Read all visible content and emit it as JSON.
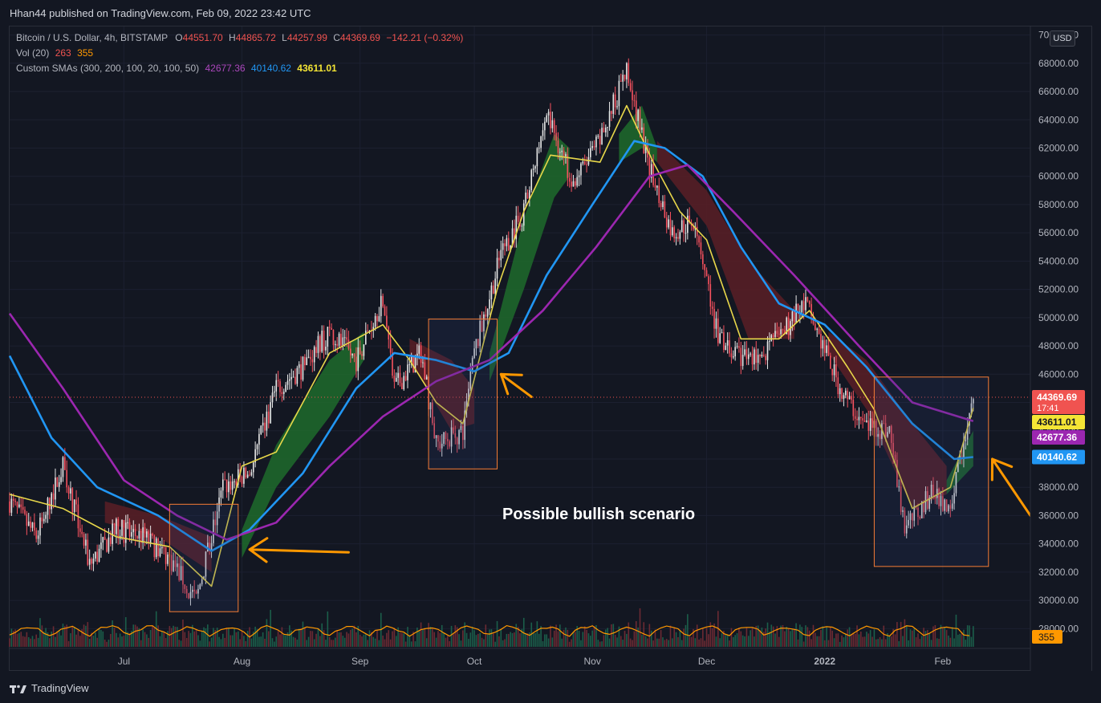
{
  "header": {
    "publish_line": "Hhan44 published on TradingView.com, Feb 09, 2022 23:42 UTC"
  },
  "legend": {
    "symbol": "Bitcoin / U.S. Dollar, 4h, BITSTAMP",
    "open_label": "O",
    "open": "44551.70",
    "high_label": "H",
    "high": "44865.72",
    "low_label": "L",
    "low": "44257.99",
    "close_label": "C",
    "close": "44369.69",
    "change": "−142.21 (−0.32%)",
    "vol_label": "Vol (20)",
    "vol_value": "263",
    "vol_ma": "355",
    "sma_label": "Custom SMAs (300, 200, 100, 20, 100, 50)",
    "sma_300": "42677.36",
    "sma_200": "40140.62",
    "sma_100": "43611.01"
  },
  "currency_button": "USD",
  "annotation_text": "Possible bullish scenario",
  "footer": {
    "brand": "TradingView"
  },
  "chart_data": {
    "type": "line",
    "x_ticks": [
      "Jul",
      "Aug",
      "Sep",
      "Oct",
      "Nov",
      "Dec",
      "2022",
      "Feb"
    ],
    "y_ticks": [
      "70000.00",
      "68000.00",
      "66000.00",
      "64000.00",
      "62000.00",
      "60000.00",
      "58000.00",
      "56000.00",
      "54000.00",
      "52000.00",
      "50000.00",
      "48000.00",
      "46000.00",
      "44000.00",
      "42000.00",
      "40000.00",
      "38000.00",
      "36000.00",
      "34000.00",
      "32000.00",
      "30000.00",
      "28000.00"
    ],
    "ylim": [
      26600,
      70600
    ],
    "x_range": [
      "2021-06-01",
      "2022-02-24"
    ],
    "price_labels": [
      {
        "text": "44369.69",
        "sub": "17:41",
        "value": 44369.69,
        "color": "#f05350"
      },
      {
        "text": "43611.01",
        "value": 43611.01,
        "color": "#f4e535"
      },
      {
        "text": "42677.36",
        "value": 42677.36,
        "color": "#9c27b0"
      },
      {
        "text": "40140.62",
        "value": 40140.62,
        "color": "#2196f3"
      }
    ],
    "volume_label": {
      "text": "355",
      "color": "#ff9800"
    },
    "series": [
      {
        "label": "price",
        "color": "#f7525f",
        "points": [
          [
            "2021-06-01",
            37000
          ],
          [
            "2021-06-08",
            34500
          ],
          [
            "2021-06-15",
            39500
          ],
          [
            "2021-06-22",
            32500
          ],
          [
            "2021-06-29",
            35000
          ],
          [
            "2021-07-06",
            34500
          ],
          [
            "2021-07-13",
            33000
          ],
          [
            "2021-07-20",
            30000
          ],
          [
            "2021-07-27",
            38000
          ],
          [
            "2021-08-03",
            39000
          ],
          [
            "2021-08-10",
            45000
          ],
          [
            "2021-08-17",
            46500
          ],
          [
            "2021-08-24",
            49000
          ],
          [
            "2021-08-31",
            47000
          ],
          [
            "2021-09-07",
            51500
          ],
          [
            "2021-09-10",
            45000
          ],
          [
            "2021-09-17",
            47500
          ],
          [
            "2021-09-21",
            41000
          ],
          [
            "2021-09-28",
            42000
          ],
          [
            "2021-10-01",
            47500
          ],
          [
            "2021-10-08",
            54500
          ],
          [
            "2021-10-14",
            57500
          ],
          [
            "2021-10-20",
            64500
          ],
          [
            "2021-10-27",
            59500
          ],
          [
            "2021-11-03",
            62500
          ],
          [
            "2021-11-10",
            67500
          ],
          [
            "2021-11-16",
            60500
          ],
          [
            "2021-11-22",
            56000
          ],
          [
            "2021-11-28",
            57000
          ],
          [
            "2021-12-04",
            48500
          ],
          [
            "2021-12-10",
            47000
          ],
          [
            "2021-12-16",
            47500
          ],
          [
            "2021-12-27",
            51000
          ],
          [
            "2022-01-05",
            45000
          ],
          [
            "2022-01-11",
            42500
          ],
          [
            "2022-01-18",
            42000
          ],
          [
            "2022-01-22",
            35000
          ],
          [
            "2022-01-29",
            37500
          ],
          [
            "2022-02-03",
            36800
          ],
          [
            "2022-02-09",
            44370
          ]
        ]
      },
      {
        "label": "sma_100",
        "color": "#e8d74a",
        "points": [
          [
            "2021-06-01",
            37500
          ],
          [
            "2021-06-15",
            36500
          ],
          [
            "2021-06-29",
            34500
          ],
          [
            "2021-07-13",
            33800
          ],
          [
            "2021-07-24",
            31000
          ],
          [
            "2021-08-01",
            39500
          ],
          [
            "2021-08-10",
            40500
          ],
          [
            "2021-08-24",
            47500
          ],
          [
            "2021-09-07",
            49500
          ],
          [
            "2021-09-14",
            47000
          ],
          [
            "2021-09-21",
            44000
          ],
          [
            "2021-09-28",
            42500
          ],
          [
            "2021-10-07",
            52000
          ],
          [
            "2021-10-14",
            57500
          ],
          [
            "2021-10-21",
            61500
          ],
          [
            "2021-11-03",
            61000
          ],
          [
            "2021-11-10",
            65000
          ],
          [
            "2021-11-17",
            61000
          ],
          [
            "2021-11-24",
            57500
          ],
          [
            "2021-12-01",
            55500
          ],
          [
            "2021-12-10",
            48500
          ],
          [
            "2021-12-20",
            48500
          ],
          [
            "2021-12-28",
            50500
          ],
          [
            "2022-01-07",
            46500
          ],
          [
            "2022-01-14",
            43500
          ],
          [
            "2022-01-24",
            36500
          ],
          [
            "2022-02-03",
            38000
          ],
          [
            "2022-02-09",
            43611
          ]
        ]
      },
      {
        "label": "sma_200",
        "color": "#2196f3",
        "points": [
          [
            "2021-06-01",
            47300
          ],
          [
            "2021-06-12",
            41500
          ],
          [
            "2021-06-24",
            38000
          ],
          [
            "2021-07-10",
            36000
          ],
          [
            "2021-07-24",
            33500
          ],
          [
            "2021-08-03",
            35000
          ],
          [
            "2021-08-17",
            39000
          ],
          [
            "2021-08-31",
            45000
          ],
          [
            "2021-09-10",
            47500
          ],
          [
            "2021-09-21",
            47000
          ],
          [
            "2021-10-01",
            46200
          ],
          [
            "2021-10-10",
            47500
          ],
          [
            "2021-10-20",
            53000
          ],
          [
            "2021-11-01",
            58000
          ],
          [
            "2021-11-12",
            62500
          ],
          [
            "2021-11-20",
            62000
          ],
          [
            "2021-11-30",
            60000
          ],
          [
            "2021-12-10",
            55000
          ],
          [
            "2021-12-20",
            51000
          ],
          [
            "2022-01-01",
            49500
          ],
          [
            "2022-01-12",
            46500
          ],
          [
            "2022-01-24",
            42500
          ],
          [
            "2022-02-04",
            40000
          ],
          [
            "2022-02-09",
            40140
          ]
        ]
      },
      {
        "label": "sma_300",
        "color": "#9c27b0",
        "points": [
          [
            "2021-06-01",
            50300
          ],
          [
            "2021-06-15",
            45000
          ],
          [
            "2021-07-01",
            38500
          ],
          [
            "2021-07-15",
            36000
          ],
          [
            "2021-07-28",
            34300
          ],
          [
            "2021-08-10",
            35500
          ],
          [
            "2021-08-24",
            39500
          ],
          [
            "2021-09-07",
            43000
          ],
          [
            "2021-09-21",
            45500
          ],
          [
            "2021-10-05",
            47000
          ],
          [
            "2021-10-19",
            50500
          ],
          [
            "2021-11-02",
            55000
          ],
          [
            "2021-11-16",
            60000
          ],
          [
            "2021-11-26",
            60800
          ],
          [
            "2021-12-08",
            57500
          ],
          [
            "2021-12-24",
            53000
          ],
          [
            "2022-01-10",
            48000
          ],
          [
            "2022-01-24",
            44000
          ],
          [
            "2022-02-09",
            42677
          ]
        ]
      }
    ],
    "bands": [
      {
        "color": "#1f6b2c",
        "points": [
          [
            "2021-08-01",
            33000,
            35000
          ],
          [
            "2021-08-10",
            38000,
            41000
          ],
          [
            "2021-08-24",
            43000,
            47000
          ],
          [
            "2021-09-02",
            47000,
            49000
          ]
        ]
      },
      {
        "color": "#1f6b2c",
        "points": [
          [
            "2021-10-05",
            45500,
            47500
          ],
          [
            "2021-10-14",
            52000,
            57000
          ],
          [
            "2021-10-22",
            58500,
            63000
          ],
          [
            "2021-10-26",
            60000,
            62000
          ]
        ]
      },
      {
        "color": "#1f6b2c",
        "points": [
          [
            "2021-11-08",
            61000,
            63000
          ],
          [
            "2021-11-14",
            62000,
            65000
          ],
          [
            "2021-11-18",
            61000,
            62000
          ]
        ]
      },
      {
        "color": "#1f6b2c",
        "points": [
          [
            "2022-02-02",
            37500,
            38500
          ],
          [
            "2022-02-09",
            39500,
            42000
          ]
        ]
      },
      {
        "color": "#5a1e26",
        "points": [
          [
            "2021-06-26",
            35500,
            37000
          ],
          [
            "2021-07-10",
            34500,
            36000
          ],
          [
            "2021-07-24",
            32000,
            34500
          ]
        ]
      },
      {
        "color": "#5a1e26",
        "points": [
          [
            "2021-09-14",
            47000,
            48500
          ],
          [
            "2021-09-25",
            42000,
            47000
          ],
          [
            "2021-10-01",
            42500,
            45000
          ]
        ]
      },
      {
        "color": "#5a1e26",
        "points": [
          [
            "2021-11-18",
            61000,
            62500
          ],
          [
            "2021-12-01",
            56500,
            59000
          ],
          [
            "2021-12-12",
            48500,
            54000
          ],
          [
            "2021-12-24",
            48500,
            50500
          ]
        ]
      },
      {
        "color": "#5a1e26",
        "points": [
          [
            "2022-01-02",
            47500,
            49000
          ],
          [
            "2022-01-12",
            43500,
            47000
          ],
          [
            "2022-01-24",
            36500,
            42500
          ],
          [
            "2022-02-02",
            37500,
            39500
          ]
        ]
      }
    ],
    "boxes": [
      {
        "x": [
          "2021-07-13",
          "2021-07-31"
        ],
        "y": [
          29200,
          36800
        ],
        "color": "#f57c35"
      },
      {
        "x": [
          "2021-09-19",
          "2021-10-07"
        ],
        "y": [
          39300,
          49900
        ],
        "color": "#f57c35"
      },
      {
        "x": [
          "2022-01-14",
          "2022-02-13"
        ],
        "y": [
          32400,
          45800
        ],
        "color": "#f57c35"
      }
    ],
    "arrows": [
      {
        "from": [
          "2021-08-29",
          33400
        ],
        "to": [
          "2021-08-03",
          33600
        ],
        "color": "#ff9800"
      },
      {
        "from": [
          "2021-10-16",
          44400
        ],
        "to": [
          "2021-10-08",
          46000
        ],
        "color": "#ff9800"
      },
      {
        "from": [
          "2022-02-24",
          36000
        ],
        "to": [
          "2022-02-14",
          40000
        ],
        "color": "#ff9800"
      }
    ]
  }
}
